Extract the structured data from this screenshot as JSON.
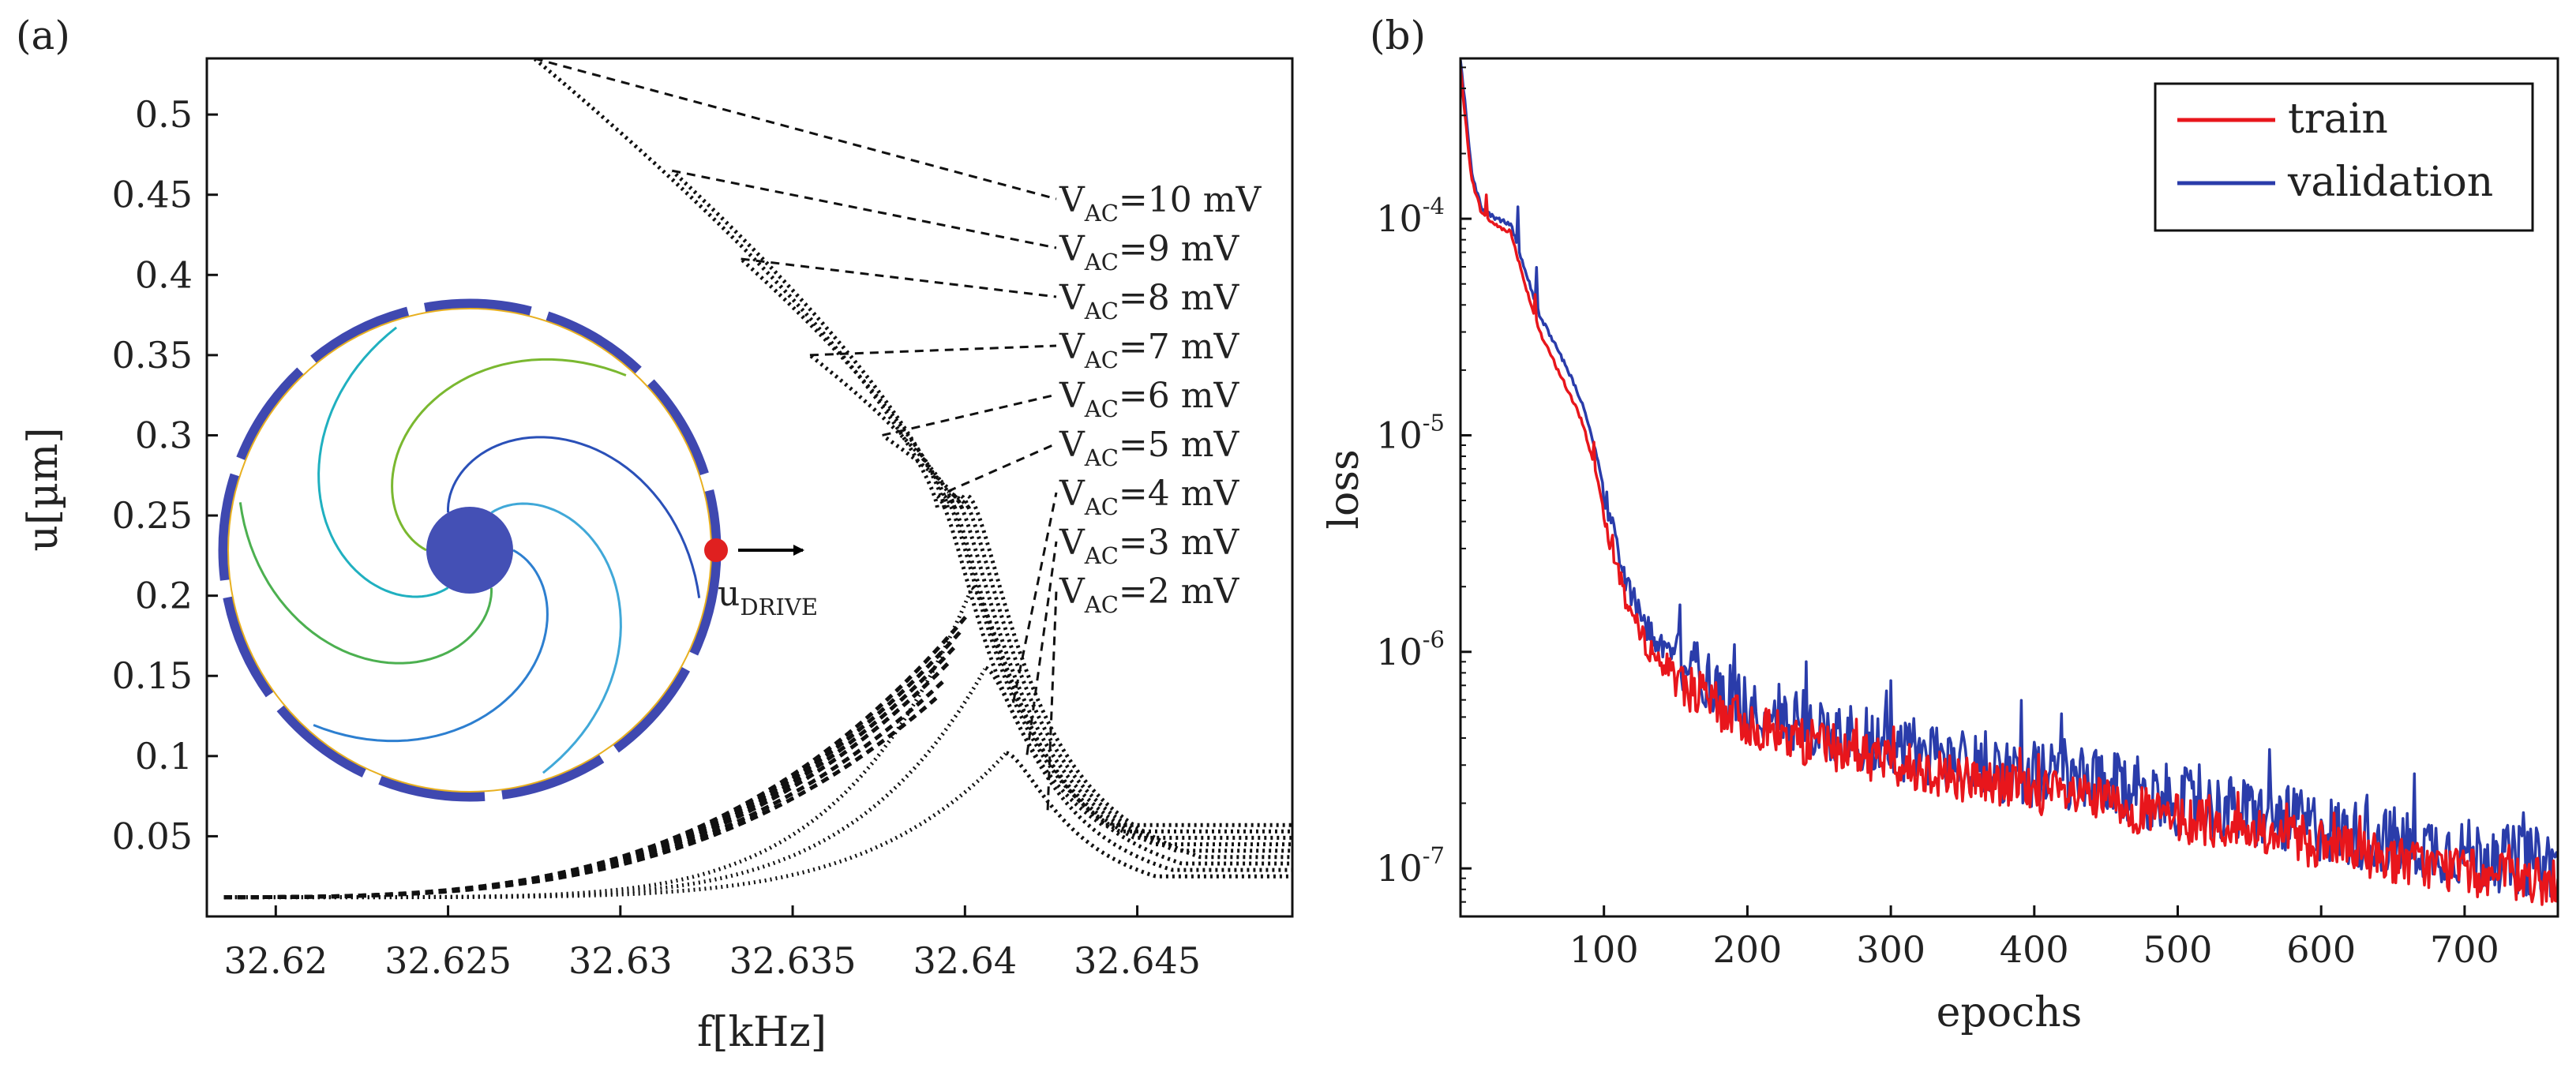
{
  "chart_data": [
    {
      "type": "scatter",
      "panel_label": "(a)",
      "xlabel": "f[kHz]",
      "ylabel": "u[µm]",
      "xlim": [
        32.618,
        32.6495
      ],
      "ylim": [
        0.0,
        0.535
      ],
      "xticks": [
        32.62,
        32.625,
        32.63,
        32.635,
        32.64,
        32.645
      ],
      "xtick_labels": [
        "32.62",
        "32.625",
        "32.63",
        "32.635",
        "32.64",
        "32.645"
      ],
      "yticks": [
        0.05,
        0.1,
        0.15,
        0.2,
        0.25,
        0.3,
        0.35,
        0.4,
        0.45,
        0.5
      ],
      "ytick_labels": [
        "0.05",
        "0.1",
        "0.15",
        "0.2",
        "0.25",
        "0.3",
        "0.35",
        "0.4",
        "0.45",
        "0.5"
      ],
      "grid": false,
      "series": [
        {
          "name": "V_AC=10 mV",
          "label_main": "V",
          "label_sub": "AC",
          "label_rest": "=10 mV",
          "peak_x": 32.6275,
          "peak_y": 0.535,
          "jump_x": 32.6392
        },
        {
          "name": "V_AC=9 mV",
          "label_main": "V",
          "label_sub": "AC",
          "label_rest": "=9 mV",
          "peak_x": 32.6315,
          "peak_y": 0.465,
          "jump_x": 32.6394
        },
        {
          "name": "V_AC=8 mV",
          "label_main": "V",
          "label_sub": "AC",
          "label_rest": "=8 mV",
          "peak_x": 32.6335,
          "peak_y": 0.41,
          "jump_x": 32.6395
        },
        {
          "name": "V_AC=7 mV",
          "label_main": "V",
          "label_sub": "AC",
          "label_rest": "=7 mV",
          "peak_x": 32.6355,
          "peak_y": 0.35,
          "jump_x": 32.6397
        },
        {
          "name": "V_AC=6 mV",
          "label_main": "V",
          "label_sub": "AC",
          "label_rest": "=6 mV",
          "peak_x": 32.6376,
          "peak_y": 0.3,
          "jump_x": 32.6399
        },
        {
          "name": "V_AC=5 mV",
          "label_main": "V",
          "label_sub": "AC",
          "label_rest": "=5 mV",
          "peak_x": 32.6395,
          "peak_y": 0.265,
          "jump_x": 32.6401
        },
        {
          "name": "V_AC=4 mV",
          "label_main": "V",
          "label_sub": "AC",
          "label_rest": "=4 mV",
          "peak_x": 32.6402,
          "peak_y": 0.205,
          "jump_x": null
        },
        {
          "name": "V_AC=3 mV",
          "label_main": "V",
          "label_sub": "AC",
          "label_rest": "=3 mV",
          "peak_x": 32.6406,
          "peak_y": 0.155,
          "jump_x": null
        },
        {
          "name": "V_AC=2 mV",
          "label_main": "V",
          "label_sub": "AC",
          "label_rest": "=2 mV",
          "peak_x": 32.6412,
          "peak_y": 0.102,
          "jump_x": null
        }
      ],
      "inset": {
        "arrow_label_main": "u",
        "arrow_label_sub": "DRIVE",
        "colors": {
          "ring": "#3F48B0",
          "hub": "#4450B5",
          "drive_point": "#E02020",
          "arrow": "#000000"
        }
      }
    },
    {
      "type": "line",
      "panel_label": "(b)",
      "xlabel": "epochs",
      "ylabel": "loss",
      "yscale": "log",
      "xlim": [
        0,
        765
      ],
      "ylim": [
        6e-08,
        0.00055
      ],
      "xticks": [
        100,
        200,
        300,
        400,
        500,
        600,
        700
      ],
      "xtick_labels": [
        "100",
        "200",
        "300",
        "400",
        "500",
        "600",
        "700"
      ],
      "yticks": [
        1e-07,
        1e-06,
        1e-05,
        0.0001
      ],
      "ytick_labels": [
        {
          "base": "10",
          "exp": "-7"
        },
        {
          "base": "10",
          "exp": "-6"
        },
        {
          "base": "10",
          "exp": "-5"
        },
        {
          "base": "10",
          "exp": "-4"
        }
      ],
      "legend_position": "top-right",
      "grid": false,
      "series": [
        {
          "name": "train",
          "color": "#E8161C",
          "points": [
            [
              0,
              0.0005
            ],
            [
              3,
              0.0003
            ],
            [
              8,
              0.00015
            ],
            [
              15,
              0.000105
            ],
            [
              25,
              9.3e-05
            ],
            [
              35,
              8.7e-05
            ],
            [
              45,
              5e-05
            ],
            [
              55,
              3e-05
            ],
            [
              65,
              2.2e-05
            ],
            [
              75,
              1.6e-05
            ],
            [
              85,
              1.15e-05
            ],
            [
              95,
              6.5e-06
            ],
            [
              105,
              3.2e-06
            ],
            [
              115,
              1.8e-06
            ],
            [
              125,
              1.2e-06
            ],
            [
              140,
              8.8e-07
            ],
            [
              160,
              6.8e-07
            ],
            [
              180,
              5.5e-07
            ],
            [
              200,
              4.7e-07
            ],
            [
              230,
              4e-07
            ],
            [
              260,
              3.6e-07
            ],
            [
              300,
              3.1e-07
            ],
            [
              340,
              2.7e-07
            ],
            [
              400,
              2.3e-07
            ],
            [
              450,
              2e-07
            ],
            [
              500,
              1.7e-07
            ],
            [
              560,
              1.45e-07
            ],
            [
              620,
              1.2e-07
            ],
            [
              680,
              1.02e-07
            ],
            [
              730,
              9e-08
            ],
            [
              765,
              8.5e-08
            ]
          ]
        },
        {
          "name": "validation",
          "color": "#2A3CAA",
          "points": [
            [
              0,
              0.00055
            ],
            [
              3,
              0.00035
            ],
            [
              8,
              0.00016
            ],
            [
              15,
              0.00011
            ],
            [
              25,
              0.0001
            ],
            [
              35,
              9.5e-05
            ],
            [
              45,
              5.8e-05
            ],
            [
              55,
              3.6e-05
            ],
            [
              65,
              2.7e-05
            ],
            [
              75,
              2e-05
            ],
            [
              85,
              1.4e-05
            ],
            [
              95,
              8e-06
            ],
            [
              105,
              3.9e-06
            ],
            [
              115,
              2.2e-06
            ],
            [
              125,
              1.45e-06
            ],
            [
              140,
              1.05e-06
            ],
            [
              160,
              8.2e-07
            ],
            [
              180,
              6.6e-07
            ],
            [
              200,
              5.6e-07
            ],
            [
              230,
              4.8e-07
            ],
            [
              260,
              4.3e-07
            ],
            [
              300,
              3.7e-07
            ],
            [
              340,
              3.2e-07
            ],
            [
              400,
              2.75e-07
            ],
            [
              450,
              2.4e-07
            ],
            [
              500,
              2.05e-07
            ],
            [
              560,
              1.75e-07
            ],
            [
              620,
              1.45e-07
            ],
            [
              680,
              1.25e-07
            ],
            [
              730,
              1.1e-07
            ],
            [
              765,
              1.05e-07
            ]
          ]
        }
      ]
    }
  ]
}
